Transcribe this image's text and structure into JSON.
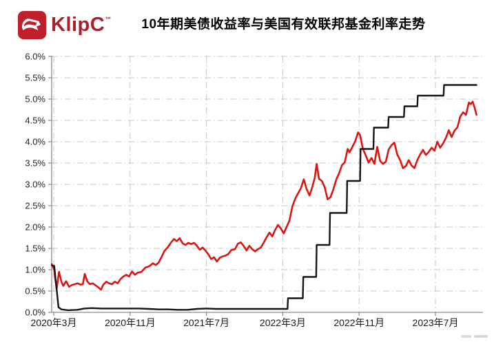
{
  "header": {
    "brand": "KlipC",
    "brand_mark": "™",
    "title": "10年期美债收益率与美国有效联邦基金利率走势"
  },
  "colors": {
    "brand_red": "#c0202c",
    "brand_text": "#a8202a",
    "grid": "#c7c7c7",
    "axis": "#8a8a8a",
    "tick_text": "#262626",
    "line_red": "#dd1410",
    "line_black": "#141414"
  },
  "chart_data": {
    "type": "line",
    "title": "10年期美债收益率与美国有效联邦基金利率走势",
    "xlabel": "",
    "ylabel": "",
    "unit": "%",
    "grid": true,
    "legend_position": "none",
    "ylim": [
      0,
      6
    ],
    "ytick_labels": [
      "0.0%",
      "0.5%",
      "1.0%",
      "1.5%",
      "2.0%",
      "2.5%",
      "3.0%",
      "3.5%",
      "4.0%",
      "4.5%",
      "5.0%",
      "5.5%",
      "6.0%"
    ],
    "x_unit": "months since 2020-03",
    "xlim_months": [
      -0.2,
      45.0
    ],
    "xticks": [
      0,
      8,
      16,
      24,
      32,
      40
    ],
    "xtick_labels": [
      "2020年3月",
      "2020年11月",
      "2021年7月",
      "2022年3月",
      "2022年11月",
      "2023年7月"
    ],
    "series": [
      {
        "id": "us10y-yield",
        "name": "10年期美债收益率",
        "color": "#dd1410",
        "stroke_width": 2.6,
        "points": [
          [
            -0.2,
            1.13
          ],
          [
            0.05,
            1.0
          ],
          [
            0.3,
            0.54
          ],
          [
            0.55,
            0.95
          ],
          [
            0.8,
            0.72
          ],
          [
            1.0,
            0.62
          ],
          [
            1.3,
            0.73
          ],
          [
            1.6,
            0.6
          ],
          [
            1.9,
            0.64
          ],
          [
            2.2,
            0.66
          ],
          [
            2.5,
            0.68
          ],
          [
            2.8,
            0.65
          ],
          [
            3.05,
            0.66
          ],
          [
            3.25,
            0.9
          ],
          [
            3.5,
            0.73
          ],
          [
            3.8,
            0.66
          ],
          [
            4.1,
            0.68
          ],
          [
            4.4,
            0.63
          ],
          [
            4.7,
            0.58
          ],
          [
            4.95,
            0.53
          ],
          [
            5.2,
            0.65
          ],
          [
            5.5,
            0.72
          ],
          [
            5.8,
            0.68
          ],
          [
            6.1,
            0.66
          ],
          [
            6.4,
            0.72
          ],
          [
            6.7,
            0.68
          ],
          [
            7.0,
            0.78
          ],
          [
            7.3,
            0.84
          ],
          [
            7.6,
            0.88
          ],
          [
            7.9,
            0.84
          ],
          [
            8.2,
            0.96
          ],
          [
            8.5,
            0.88
          ],
          [
            8.8,
            0.93
          ],
          [
            9.2,
            0.95
          ],
          [
            9.6,
            1.05
          ],
          [
            10.0,
            1.08
          ],
          [
            10.4,
            1.15
          ],
          [
            10.7,
            1.11
          ],
          [
            11.0,
            1.17
          ],
          [
            11.3,
            1.3
          ],
          [
            11.6,
            1.44
          ],
          [
            12.0,
            1.54
          ],
          [
            12.3,
            1.64
          ],
          [
            12.6,
            1.72
          ],
          [
            12.9,
            1.67
          ],
          [
            13.2,
            1.74
          ],
          [
            13.5,
            1.62
          ],
          [
            13.8,
            1.58
          ],
          [
            14.1,
            1.63
          ],
          [
            14.4,
            1.6
          ],
          [
            14.7,
            1.63
          ],
          [
            15.0,
            1.56
          ],
          [
            15.3,
            1.47
          ],
          [
            15.6,
            1.52
          ],
          [
            15.9,
            1.45
          ],
          [
            16.2,
            1.36
          ],
          [
            16.5,
            1.25
          ],
          [
            16.8,
            1.29
          ],
          [
            17.1,
            1.19
          ],
          [
            17.4,
            1.28
          ],
          [
            17.7,
            1.31
          ],
          [
            18.0,
            1.33
          ],
          [
            18.3,
            1.37
          ],
          [
            18.6,
            1.46
          ],
          [
            19.0,
            1.48
          ],
          [
            19.3,
            1.61
          ],
          [
            19.6,
            1.64
          ],
          [
            19.9,
            1.56
          ],
          [
            20.2,
            1.45
          ],
          [
            20.5,
            1.56
          ],
          [
            20.8,
            1.48
          ],
          [
            21.1,
            1.43
          ],
          [
            21.4,
            1.48
          ],
          [
            21.7,
            1.52
          ],
          [
            22.0,
            1.63
          ],
          [
            22.3,
            1.76
          ],
          [
            22.6,
            1.87
          ],
          [
            22.9,
            1.78
          ],
          [
            23.2,
            1.93
          ],
          [
            23.5,
            2.05
          ],
          [
            23.8,
            1.97
          ],
          [
            24.1,
            1.85
          ],
          [
            24.4,
            2.0
          ],
          [
            24.7,
            2.15
          ],
          [
            25.0,
            2.48
          ],
          [
            25.3,
            2.66
          ],
          [
            25.6,
            2.79
          ],
          [
            25.9,
            2.91
          ],
          [
            26.2,
            3.12
          ],
          [
            26.5,
            2.89
          ],
          [
            26.8,
            2.74
          ],
          [
            27.1,
            2.94
          ],
          [
            27.35,
            3.15
          ],
          [
            27.55,
            3.48
          ],
          [
            27.8,
            3.13
          ],
          [
            28.1,
            3.08
          ],
          [
            28.4,
            2.93
          ],
          [
            28.7,
            2.65
          ],
          [
            29.0,
            2.7
          ],
          [
            29.3,
            2.88
          ],
          [
            29.6,
            3.11
          ],
          [
            29.9,
            3.26
          ],
          [
            30.2,
            3.45
          ],
          [
            30.5,
            3.52
          ],
          [
            30.8,
            3.83
          ],
          [
            31.0,
            3.75
          ],
          [
            31.3,
            3.88
          ],
          [
            31.6,
            4.02
          ],
          [
            31.9,
            4.22
          ],
          [
            32.1,
            4.16
          ],
          [
            32.4,
            3.83
          ],
          [
            32.7,
            3.68
          ],
          [
            33.0,
            3.51
          ],
          [
            33.3,
            3.62
          ],
          [
            33.6,
            3.48
          ],
          [
            33.9,
            3.88
          ],
          [
            34.2,
            3.55
          ],
          [
            34.5,
            3.48
          ],
          [
            34.8,
            3.53
          ],
          [
            35.1,
            3.82
          ],
          [
            35.4,
            3.92
          ],
          [
            35.7,
            3.98
          ],
          [
            36.0,
            3.7
          ],
          [
            36.3,
            3.57
          ],
          [
            36.6,
            3.38
          ],
          [
            36.9,
            3.43
          ],
          [
            37.2,
            3.57
          ],
          [
            37.5,
            3.44
          ],
          [
            37.8,
            3.38
          ],
          [
            38.1,
            3.57
          ],
          [
            38.4,
            3.7
          ],
          [
            38.7,
            3.81
          ],
          [
            39.0,
            3.69
          ],
          [
            39.3,
            3.76
          ],
          [
            39.6,
            3.86
          ],
          [
            39.9,
            3.79
          ],
          [
            40.2,
            4.0
          ],
          [
            40.5,
            3.86
          ],
          [
            40.8,
            3.96
          ],
          [
            41.1,
            4.09
          ],
          [
            41.4,
            4.27
          ],
          [
            41.7,
            4.11
          ],
          [
            42.0,
            4.26
          ],
          [
            42.3,
            4.34
          ],
          [
            42.6,
            4.59
          ],
          [
            42.9,
            4.69
          ],
          [
            43.2,
            4.63
          ],
          [
            43.5,
            4.92
          ],
          [
            43.7,
            4.88
          ],
          [
            43.9,
            4.94
          ],
          [
            44.1,
            4.8
          ],
          [
            44.3,
            4.63
          ]
        ]
      },
      {
        "id": "effective-fed-funds-rate",
        "name": "美国有效联邦基金利率",
        "color": "#141414",
        "stroke_width": 2.4,
        "points": [
          [
            -0.2,
            1.1
          ],
          [
            0.05,
            1.09
          ],
          [
            0.25,
            0.65
          ],
          [
            0.5,
            0.12
          ],
          [
            0.8,
            0.07
          ],
          [
            1.5,
            0.05
          ],
          [
            2.5,
            0.06
          ],
          [
            3.2,
            0.09
          ],
          [
            4.0,
            0.1
          ],
          [
            5.0,
            0.09
          ],
          [
            6.0,
            0.09
          ],
          [
            7.0,
            0.09
          ],
          [
            8.0,
            0.09
          ],
          [
            9.0,
            0.09
          ],
          [
            10.0,
            0.08
          ],
          [
            11.0,
            0.07
          ],
          [
            12.0,
            0.07
          ],
          [
            13.0,
            0.06
          ],
          [
            14.0,
            0.06
          ],
          [
            15.0,
            0.08
          ],
          [
            16.0,
            0.09
          ],
          [
            17.0,
            0.08
          ],
          [
            18.0,
            0.08
          ],
          [
            19.0,
            0.08
          ],
          [
            20.0,
            0.08
          ],
          [
            21.0,
            0.08
          ],
          [
            22.0,
            0.08
          ],
          [
            23.0,
            0.08
          ],
          [
            24.5,
            0.08
          ],
          [
            24.55,
            0.33
          ],
          [
            26.1,
            0.33
          ],
          [
            26.15,
            0.83
          ],
          [
            27.5,
            0.83
          ],
          [
            27.55,
            1.58
          ],
          [
            28.9,
            1.58
          ],
          [
            28.95,
            2.33
          ],
          [
            30.7,
            2.33
          ],
          [
            30.75,
            3.08
          ],
          [
            32.1,
            3.08
          ],
          [
            32.15,
            3.83
          ],
          [
            33.5,
            3.83
          ],
          [
            33.55,
            4.33
          ],
          [
            35.05,
            4.33
          ],
          [
            35.1,
            4.58
          ],
          [
            36.7,
            4.58
          ],
          [
            36.75,
            4.83
          ],
          [
            38.1,
            4.83
          ],
          [
            38.15,
            5.08
          ],
          [
            40.85,
            5.08
          ],
          [
            40.9,
            5.33
          ],
          [
            44.3,
            5.33
          ]
        ]
      }
    ]
  }
}
